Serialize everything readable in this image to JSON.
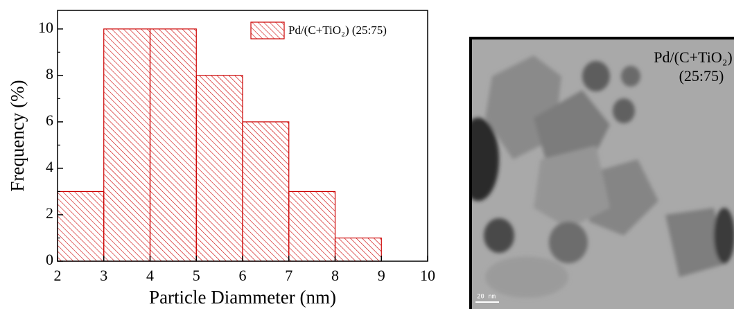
{
  "chart_data": {
    "type": "histogram",
    "bins": [
      2,
      3,
      4,
      5,
      6,
      7,
      8,
      9
    ],
    "series": [
      {
        "name": "Pd/(C+TiO₂) (25:75)",
        "color": "#cc0000",
        "values": [
          3,
          10,
          10,
          8,
          6,
          3,
          1
        ]
      }
    ],
    "x_label": "Particle Diammeter (nm)",
    "y_label": "Frequency (%)",
    "xlim": [
      2,
      10
    ],
    "xticks": [
      2,
      3,
      4,
      5,
      6,
      7,
      8,
      9,
      10
    ],
    "ylim": [
      0,
      10.8
    ],
    "yticks": [
      0,
      2,
      4,
      6,
      8,
      10
    ],
    "legend": "upper right",
    "hatch": true
  },
  "image_panel": {
    "label_lines": [
      "Pd/(C+TiO₂)",
      "(25:75)"
    ],
    "scale_bar": "20 nm"
  }
}
